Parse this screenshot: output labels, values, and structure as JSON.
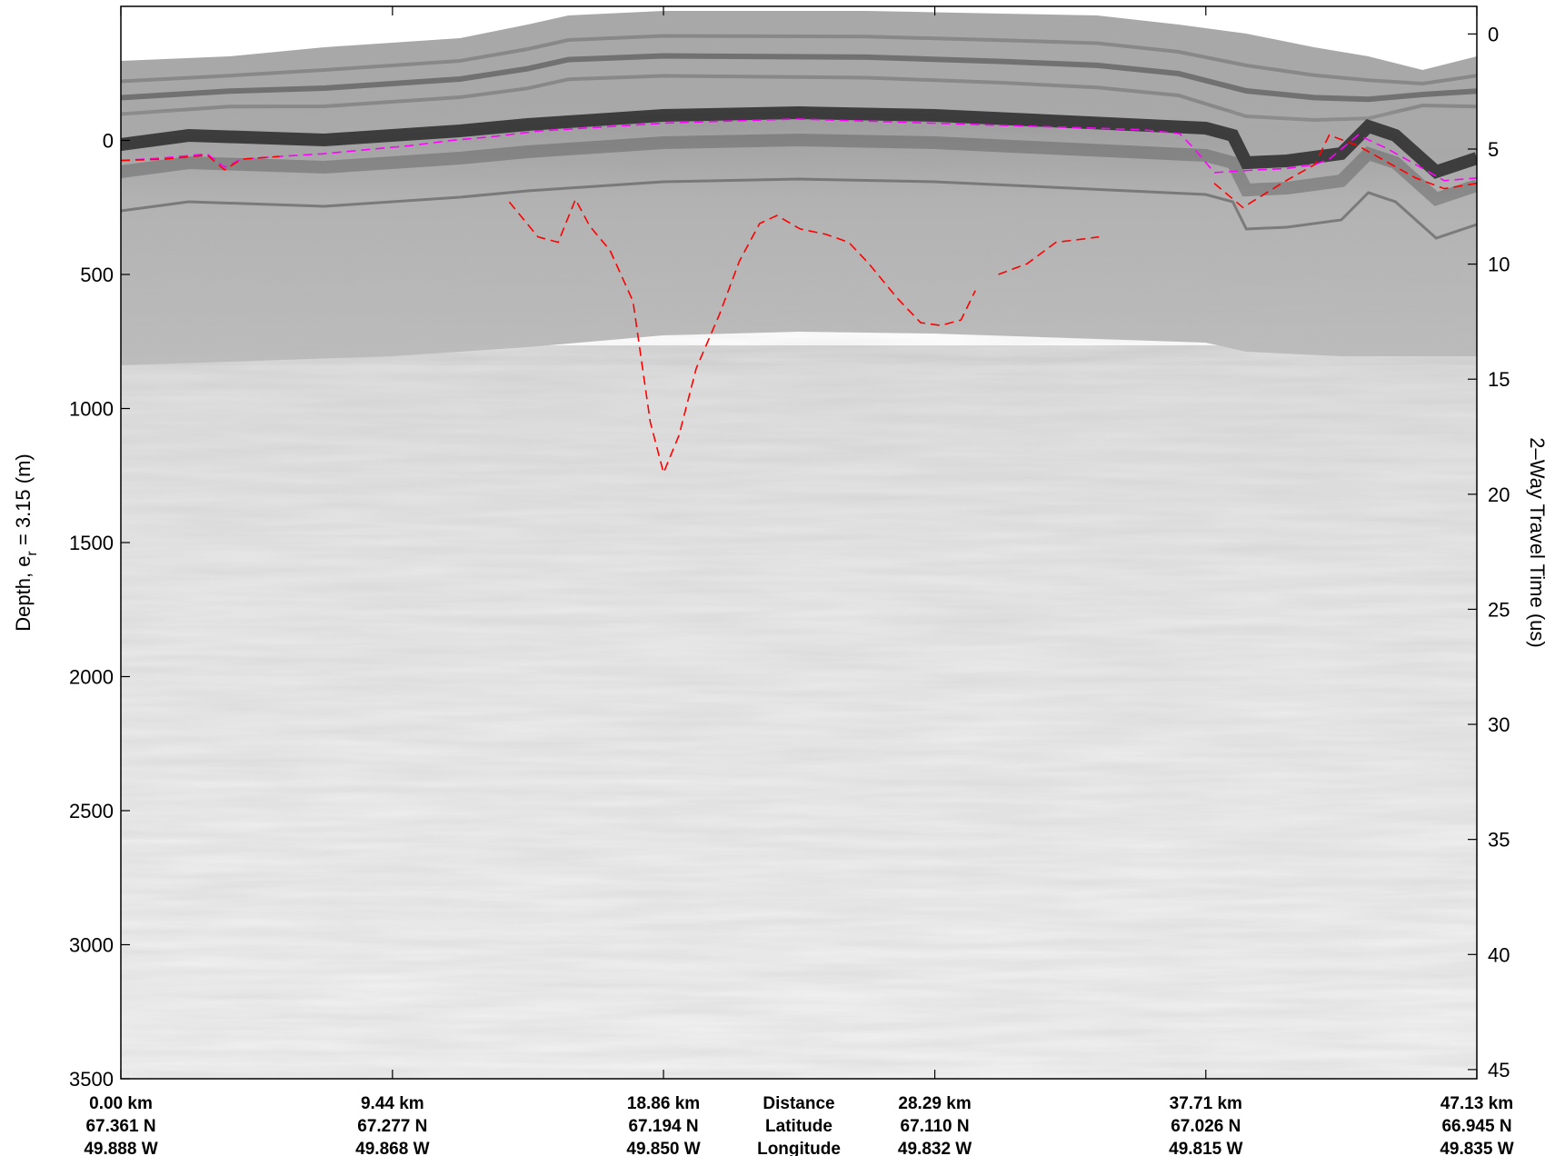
{
  "chart_data": {
    "type": "heatmap",
    "description_colormap": "grayscale",
    "title": "",
    "ylabel_left_main": "Depth, e",
    "ylabel_left_sub": "r",
    "ylabel_left_rest": " = 3.15 (m)",
    "ylabel_right": "2–Way Travel Time (us)",
    "ylim_left": [
      -500,
      3500
    ],
    "ylim_right": [
      -1.2,
      45.4
    ],
    "left_ticks": [
      0,
      500,
      1000,
      1500,
      2000,
      2500,
      3000,
      3500
    ],
    "left_tick_labels": [
      "0",
      "500",
      "1000",
      "1500",
      "2000",
      "2500",
      "3000",
      "3500"
    ],
    "right_ticks": [
      0,
      5,
      10,
      15,
      20,
      25,
      30,
      35,
      40,
      45
    ],
    "right_tick_labels": [
      "0",
      "5",
      "10",
      "15",
      "20",
      "25",
      "30",
      "35",
      "40",
      "45"
    ],
    "xlim_km": [
      0,
      47.13
    ],
    "x_tick_km": [
      0,
      9.44,
      18.86,
      28.29,
      37.71,
      47.13
    ],
    "x_tick_distance": [
      "0.00 km",
      "9.44 km",
      "18.86 km",
      "28.29 km",
      "37.71 km",
      "47.13 km"
    ],
    "x_tick_latitude": [
      "67.361 N",
      "67.277 N",
      "67.194 N",
      "67.110 N",
      "67.026 N",
      "66.945 N"
    ],
    "x_tick_longitude": [
      "49.888 W",
      "49.868 W",
      "49.850 W",
      "49.832 W",
      "49.815 W",
      "49.835 W"
    ],
    "row_labels": [
      "Distance",
      "Latitude",
      "Longitude"
    ],
    "series": [
      {
        "color": "#ff00ff",
        "style": "dashed",
        "x_km": [
          0.0,
          1.5,
          3.0,
          3.6,
          4.2,
          5.5,
          7.0,
          8.5,
          10.0,
          11.5,
          13.0,
          14.5,
          16.0,
          17.5,
          19.0,
          20.5,
          22.0,
          23.5,
          25.0,
          26.5,
          28.0,
          29.5,
          31.0,
          32.5,
          34.0,
          35.5,
          36.8,
          37.3,
          38.0,
          39.5,
          40.5,
          41.5,
          42.0,
          43.0,
          44.0,
          45.0,
          46.0,
          47.13
        ],
        "y_m": [
          75,
          65,
          50,
          100,
          70,
          60,
          50,
          35,
          20,
          0,
          -15,
          -35,
          -45,
          -55,
          -65,
          -70,
          -75,
          -80,
          -75,
          -70,
          -65,
          -60,
          -55,
          -50,
          -45,
          -40,
          -25,
          30,
          120,
          110,
          105,
          90,
          70,
          -20,
          30,
          90,
          150,
          140
        ]
      },
      {
        "color": "#ff0000",
        "style": "dashed",
        "x_km": [
          0.0,
          1.5,
          3.0,
          3.6,
          4.2,
          5.5
        ],
        "y_m": [
          75,
          70,
          55,
          110,
          70,
          60
        ]
      },
      {
        "color": "#ff0000",
        "style": "dashed",
        "x_km": [
          13.5,
          14.5,
          15.2,
          15.8,
          16.3,
          17.0,
          17.8,
          18.4,
          18.86,
          19.4,
          20.0,
          20.8,
          21.5,
          22.2,
          22.8,
          23.6,
          24.5,
          25.3,
          26.0,
          27.0,
          27.8,
          28.5,
          29.2,
          29.7
        ],
        "y_m": [
          230,
          360,
          380,
          220,
          320,
          410,
          600,
          1050,
          1240,
          1100,
          850,
          650,
          450,
          310,
          280,
          330,
          350,
          380,
          460,
          590,
          680,
          690,
          670,
          560
        ]
      },
      {
        "color": "#ff0000",
        "style": "dashed",
        "x_km": [
          30.5,
          31.5,
          32.5,
          33.3,
          34.0
        ],
        "y_m": [
          500,
          460,
          380,
          370,
          360
        ]
      },
      {
        "color": "#ff0000",
        "style": "dashed",
        "x_km": [
          38.0,
          39.0,
          40.5,
          41.5,
          42.0,
          43.0,
          44.0,
          45.0,
          46.0,
          47.13
        ],
        "y_m": [
          160,
          250,
          150,
          90,
          -20,
          20,
          80,
          140,
          180,
          160
        ]
      }
    ]
  }
}
